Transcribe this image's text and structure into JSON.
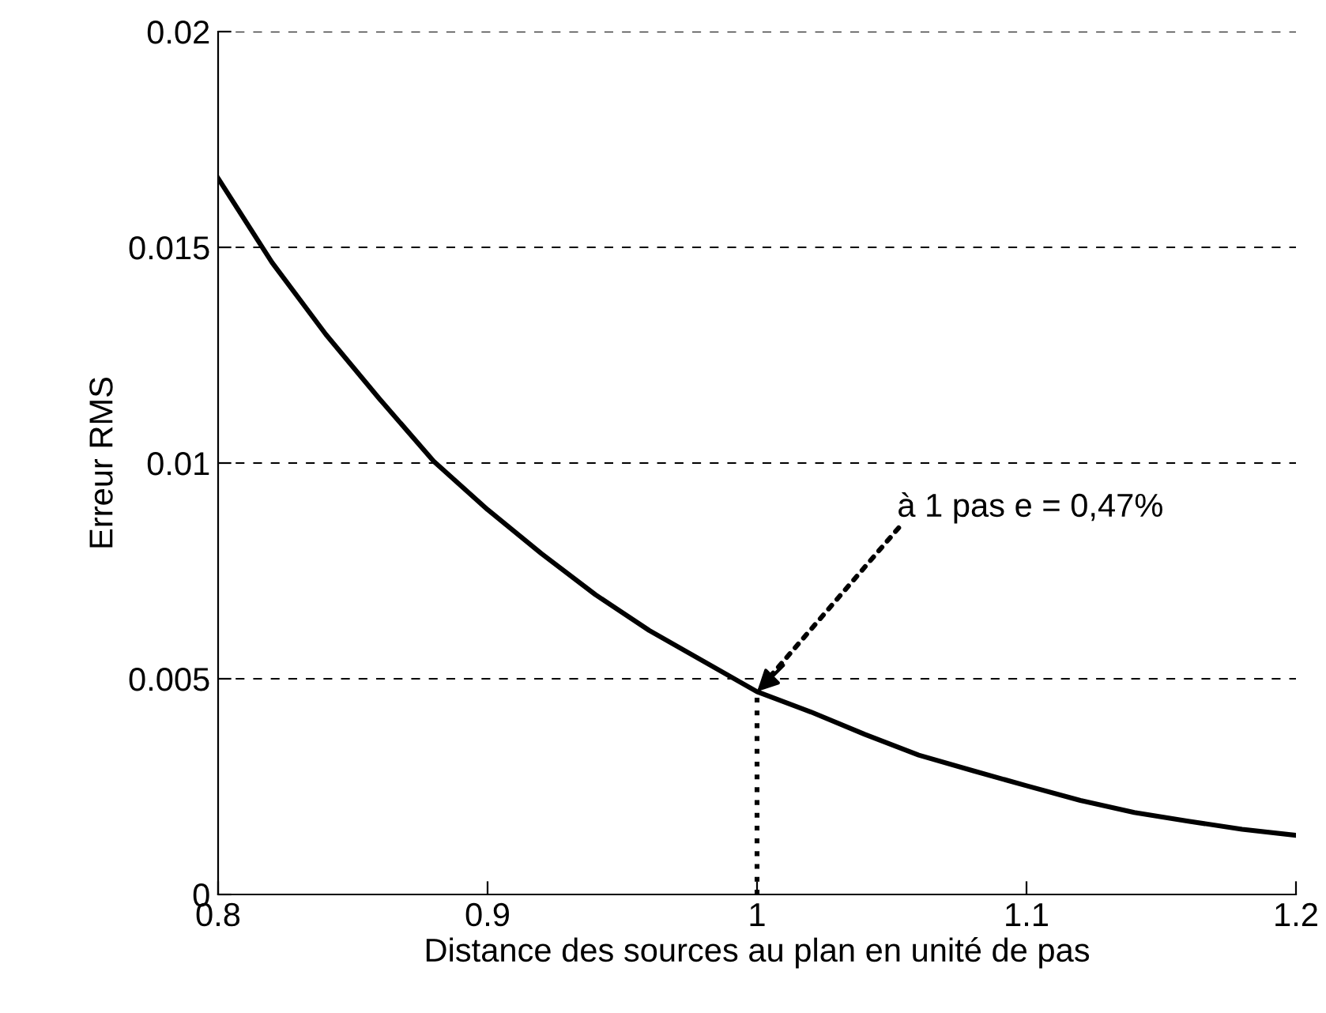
{
  "chart_data": {
    "type": "line",
    "xlabel": "Distance des sources au plan en unité de pas",
    "ylabel": "Erreur RMS",
    "x": [
      0.8,
      0.82,
      0.84,
      0.86,
      0.88,
      0.9,
      0.92,
      0.94,
      0.96,
      0.98,
      1.0,
      1.02,
      1.04,
      1.06,
      1.08,
      1.1,
      1.12,
      1.14,
      1.16,
      1.18,
      1.2
    ],
    "series": [
      {
        "color": "#000000",
        "values": [
          0.0166,
          0.01465,
          0.01298,
          0.01148,
          0.01004,
          0.00892,
          0.0079,
          0.00695,
          0.00612,
          0.00541,
          0.0047,
          0.00423,
          0.00371,
          0.00323,
          0.00287,
          0.00252,
          0.00218,
          0.0019,
          0.0017,
          0.00151,
          0.00137
        ]
      },
      {
        "type": "line",
        "color": "#000000",
        "line_style": "dotted",
        "x": [
          1.0,
          1.0
        ],
        "values": [
          0,
          0.0047
        ]
      }
    ],
    "xlim": [
      0.8,
      1.2
    ],
    "xticks": [
      0.8,
      0.9,
      1,
      1.1,
      1.2
    ],
    "ylim": [
      0,
      0.02
    ],
    "yticks": [
      0,
      0.005,
      0.01,
      0.015,
      0.02
    ],
    "grid": "y",
    "legend": false,
    "marker": "none",
    "line_style": "solid",
    "annotations": [
      {
        "text": "à 1 pas e = 0,47%",
        "x": 1.0,
        "y": 0.0047
      }
    ]
  }
}
